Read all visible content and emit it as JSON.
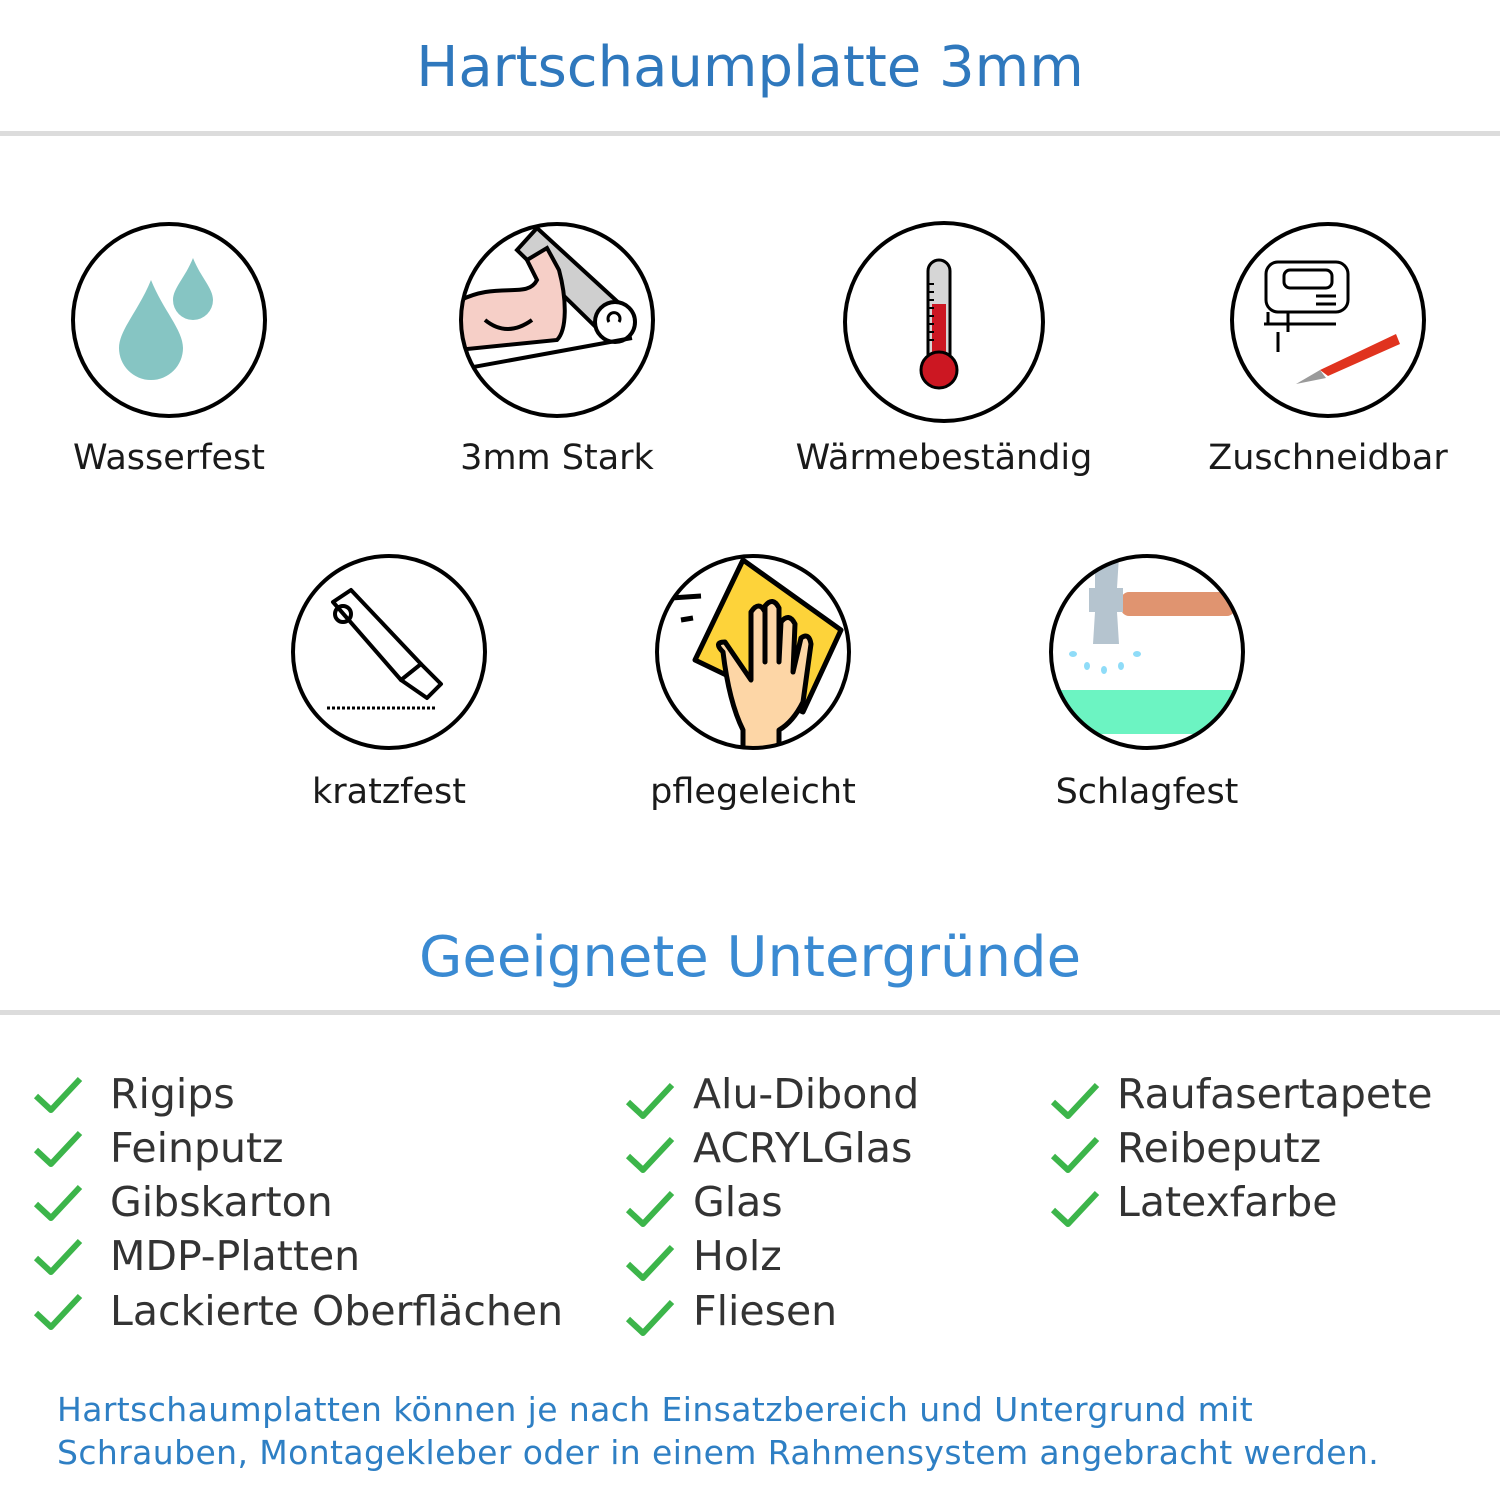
{
  "header": {
    "title": "Hartschaumplatte 3mm",
    "color": "#2f78bd"
  },
  "features": [
    {
      "label": "Wasserfest",
      "icon": "water-drops-icon"
    },
    {
      "label": "3mm Stark",
      "icon": "flexed-arm-icon"
    },
    {
      "label": "Wärmebeständig",
      "icon": "thermometer-icon"
    },
    {
      "label": "Zuschneidbar",
      "icon": "jigsaw-icon"
    },
    {
      "label": "kratzfest",
      "icon": "cutter-knife-icon"
    },
    {
      "label": "pflegeleicht",
      "icon": "cleaning-hand-icon"
    },
    {
      "label": "Schlagfest",
      "icon": "hammer-icon"
    }
  ],
  "surfaces": {
    "title": "Geeignete Untergründe",
    "title_color": "#3a8ad2",
    "check_color": "#3cb54a",
    "columns": [
      [
        "Rigips",
        "Feinputz",
        "Gibskarton",
        "MDP-Platten",
        "Lackierte Oberflächen"
      ],
      [
        "Alu-Dibond",
        "ACRYLGlas",
        "Glas",
        "Holz",
        "Fliesen"
      ],
      [
        "Raufasertapete",
        "Reibeputz",
        "Latexfarbe"
      ]
    ]
  },
  "footer": {
    "line1": "Hartschaumplatten können je nach Einsatzbereich und Untergrund mit",
    "line2": "Schrauben, Montagekleber oder in einem Rahmensystem angebracht werden."
  }
}
